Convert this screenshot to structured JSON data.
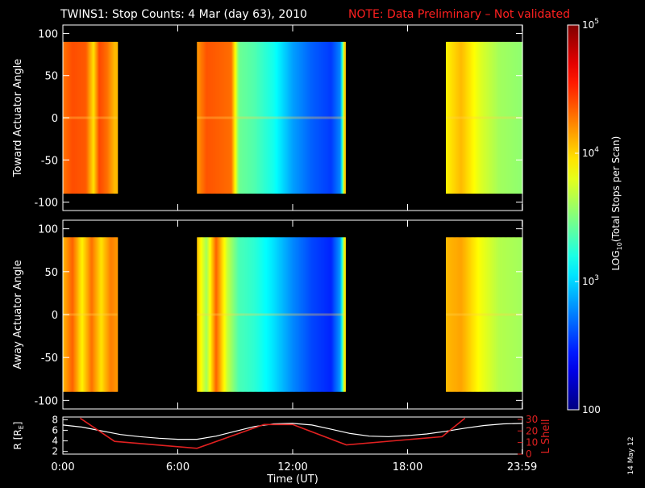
{
  "title": {
    "main": "TWINS1: Stop Counts:  4 Mar (day  63), 2010",
    "note": "NOTE: Data Preliminary – Not validated"
  },
  "side_date": "14 May 12",
  "colors": {
    "background": "#000000",
    "axes": "#ffffff",
    "note": "#ff2020",
    "r_line": "#ffffff",
    "lshell_line": "#e02020"
  },
  "chart_data": [
    {
      "type": "heatmap",
      "ylabel": "Toward Actuator Angle",
      "x_range_hours": [
        0,
        24
      ],
      "ylim": [
        -110,
        110
      ],
      "y_ticks": [
        100,
        50,
        0,
        -50,
        -100
      ],
      "y_tick_labels": [
        "100",
        "50",
        "0",
        "-50",
        "-100"
      ],
      "angle_range": [
        -90,
        90
      ],
      "z_scale": "log",
      "zlim": [
        100,
        100000
      ],
      "data_blocks": [
        {
          "start_hour": 0.0,
          "end_hour": 2.85,
          "profile": [
            [
              0,
              19000
            ],
            [
              0.5,
              25000
            ],
            [
              1.2,
              23000
            ],
            [
              1.6,
              9000
            ],
            [
              1.9,
              26000
            ],
            [
              2.3,
              20000
            ],
            [
              2.7,
              12000
            ],
            [
              2.85,
              12000
            ]
          ]
        },
        {
          "start_hour": 7.0,
          "end_hour": 14.75,
          "profile": [
            [
              7.0,
              15000
            ],
            [
              7.5,
              24000
            ],
            [
              8.2,
              22000
            ],
            [
              8.8,
              20000
            ],
            [
              9.2,
              2800
            ],
            [
              10.0,
              2300
            ],
            [
              11.0,
              1500
            ],
            [
              12.0,
              700
            ],
            [
              13.0,
              450
            ],
            [
              14.0,
              350
            ],
            [
              14.5,
              600
            ],
            [
              14.75,
              15000
            ]
          ]
        },
        {
          "start_hour": 20.0,
          "end_hour": 24.0,
          "profile": [
            [
              20.0,
              8000
            ],
            [
              20.8,
              12000
            ],
            [
              21.8,
              6000
            ],
            [
              22.8,
              4000
            ],
            [
              24.0,
              3500
            ]
          ]
        }
      ]
    },
    {
      "type": "heatmap",
      "ylabel": "Away Actuator Angle",
      "x_range_hours": [
        0,
        24
      ],
      "ylim": [
        -110,
        110
      ],
      "y_ticks": [
        100,
        50,
        0,
        -50,
        -100
      ],
      "y_tick_labels": [
        "100",
        "50",
        "0",
        "-50",
        "-100"
      ],
      "angle_range": [
        -90,
        90
      ],
      "z_scale": "log",
      "zlim": [
        100,
        100000
      ],
      "data_blocks": [
        {
          "start_hour": 0.0,
          "end_hour": 2.85,
          "profile": [
            [
              0,
              12000
            ],
            [
              0.5,
              22000
            ],
            [
              1.0,
              8000
            ],
            [
              1.5,
              20000
            ],
            [
              2.0,
              9000
            ],
            [
              2.5,
              18000
            ],
            [
              2.85,
              15000
            ]
          ]
        },
        {
          "start_hour": 7.0,
          "end_hour": 14.75,
          "profile": [
            [
              7.0,
              12000
            ],
            [
              7.5,
              4000
            ],
            [
              8.0,
              22000
            ],
            [
              8.6,
              5000
            ],
            [
              9.2,
              2200
            ],
            [
              10.0,
              1800
            ],
            [
              11.0,
              1100
            ],
            [
              12.0,
              600
            ],
            [
              13.0,
              380
            ],
            [
              14.0,
              300
            ],
            [
              14.5,
              700
            ],
            [
              14.75,
              12000
            ]
          ]
        },
        {
          "start_hour": 20.0,
          "end_hour": 24.0,
          "profile": [
            [
              20.0,
              12000
            ],
            [
              20.8,
              14000
            ],
            [
              21.8,
              7000
            ],
            [
              22.8,
              4500
            ],
            [
              24.0,
              4000
            ]
          ]
        }
      ]
    },
    {
      "type": "line",
      "ylabel": "R [R",
      "ylabel_subscript": "E",
      "ylabel_close": "]",
      "y2label": "L Shell",
      "xlabel": "Time (UT)",
      "x_range_hours": [
        0,
        24
      ],
      "x_ticks": [
        0,
        6,
        12,
        18,
        23.983
      ],
      "x_tick_labels": [
        "0:00",
        "6:00",
        "12:00",
        "18:00",
        "23:59"
      ],
      "ylim": [
        1.5,
        8.5
      ],
      "y_ticks": [
        2,
        4,
        6,
        8
      ],
      "y_tick_labels": [
        "2",
        "4",
        "6",
        "8"
      ],
      "y2lim": [
        0,
        32
      ],
      "y2_ticks": [
        0,
        10,
        20,
        30
      ],
      "y2_tick_labels": [
        "0",
        "10",
        "20",
        "30"
      ],
      "series": [
        {
          "axis": "left",
          "x": [
            0,
            1,
            2,
            3,
            4,
            5,
            6,
            7,
            8,
            9,
            10,
            11,
            12,
            13,
            14,
            15,
            16,
            17,
            18,
            19,
            20,
            21,
            22,
            23,
            24
          ],
          "y": [
            7.0,
            6.6,
            5.9,
            5.2,
            4.8,
            4.5,
            4.3,
            4.3,
            4.9,
            5.8,
            6.7,
            7.2,
            7.3,
            7.0,
            6.2,
            5.4,
            4.9,
            4.8,
            5.0,
            5.3,
            5.8,
            6.4,
            6.9,
            7.2,
            7.3
          ]
        },
        {
          "axis": "right",
          "x": [
            0.9,
            2.7,
            7.0,
            10.5,
            12.0,
            14.8,
            19.8,
            21.0
          ],
          "y": [
            31,
            11,
            5,
            25.5,
            25.5,
            8,
            15,
            31
          ]
        }
      ]
    },
    {
      "type": "colorbar",
      "label_prefix": "LOG",
      "label_sub": "10",
      "label_suffix": "(Total Stops per Scan)",
      "z_scale": "log",
      "zlim": [
        100,
        100000
      ],
      "tick_values": [
        100000,
        10000,
        1000,
        100
      ],
      "tick_labels": [
        {
          "base": "10",
          "exp": "5"
        },
        {
          "base": "10",
          "exp": "4"
        },
        {
          "base": "10",
          "exp": "3"
        },
        {
          "base": "100",
          "exp": ""
        }
      ]
    }
  ]
}
